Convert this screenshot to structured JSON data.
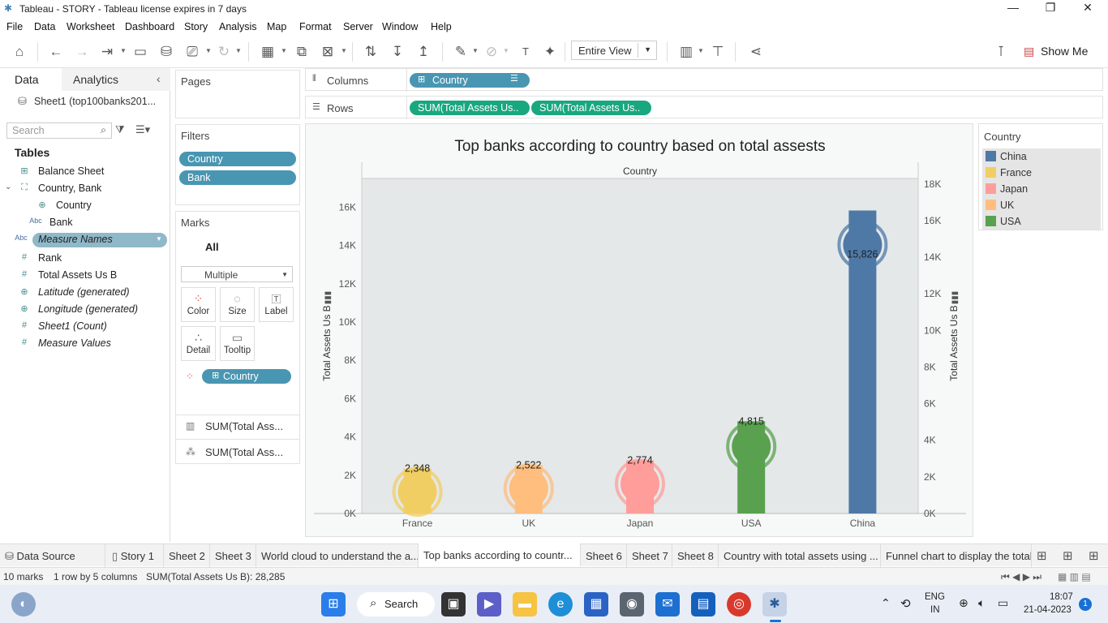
{
  "window": {
    "title": "Tableau - STORY - Tableau license expires in 7 days",
    "minimize": "—",
    "restore": "❐",
    "close": "✕"
  },
  "menu": [
    "File",
    "Data",
    "Worksheet",
    "Dashboard",
    "Story",
    "Analysis",
    "Map",
    "Format",
    "Server",
    "Window",
    "Help"
  ],
  "toolbar": {
    "fit_value": "Entire View",
    "show_me": "Show Me"
  },
  "data_pane": {
    "tab_data": "Data",
    "tab_analytics": "Analytics",
    "datasource": "Sheet1 (top100banks201...",
    "search_placeholder": "Search",
    "tables_header": "Tables",
    "fields": [
      {
        "icon": "#",
        "label": "Balance Sheet",
        "italic": false
      },
      {
        "icon": "⌄",
        "label": "Country, Bank",
        "italic": false
      },
      {
        "icon": "⊕",
        "label": "Country",
        "italic": false
      },
      {
        "icon": "Abc",
        "label": "Bank",
        "italic": false
      },
      {
        "icon": "Abc",
        "label": "Measure Names",
        "italic": true
      },
      {
        "icon": "#",
        "label": "Rank",
        "italic": false
      },
      {
        "icon": "#",
        "label": "Total Assets Us B",
        "italic": false
      },
      {
        "icon": "⊕",
        "label": "Latitude (generated)",
        "italic": true
      },
      {
        "icon": "⊕",
        "label": "Longitude (generated)",
        "italic": true
      },
      {
        "icon": "#",
        "label": "Sheet1 (Count)",
        "italic": true
      },
      {
        "icon": "#",
        "label": "Measure Values",
        "italic": true
      }
    ]
  },
  "pages": {
    "header": "Pages"
  },
  "filters": {
    "header": "Filters",
    "items": [
      "Country",
      "Bank"
    ]
  },
  "marks": {
    "header": "Marks",
    "all": "All",
    "type": "Multiple",
    "buttons": [
      "Color",
      "Size",
      "Label",
      "Detail",
      "Tooltip"
    ],
    "color_pill": "Country",
    "measure1": "SUM(Total Ass...",
    "measure2": "SUM(Total Ass..."
  },
  "shelves": {
    "columns_label": "Columns",
    "rows_label": "Rows",
    "columns_pill": "Country",
    "rows_pills": [
      "SUM(Total Assets Us..",
      "SUM(Total Assets Us.."
    ]
  },
  "legend": {
    "title": "Country",
    "items": [
      {
        "name": "China",
        "color": "#4e79a7"
      },
      {
        "name": "France",
        "color": "#f1ce63"
      },
      {
        "name": "Japan",
        "color": "#ff9d9a"
      },
      {
        "name": "UK",
        "color": "#ffbe7d"
      },
      {
        "name": "USA",
        "color": "#59a14f"
      }
    ]
  },
  "chart_data": {
    "type": "bar",
    "title": "Top banks according to country based on total assests",
    "header": "Country",
    "ylabel": "Total Assets Us B",
    "y2label": "Total Assets Us B",
    "categories": [
      "France",
      "UK",
      "Japan",
      "USA",
      "China"
    ],
    "values": [
      2348,
      2522,
      2774,
      4815,
      15826
    ],
    "labels": [
      "2,348",
      "2,522",
      "2,774",
      "4,815",
      "15,826"
    ],
    "colors": [
      "#f1ce63",
      "#ffbe7d",
      "#ff9d9a",
      "#59a14f",
      "#4e79a7"
    ],
    "left_axis": {
      "ylim": [
        0,
        17500
      ],
      "ticks": [
        0,
        2000,
        4000,
        6000,
        8000,
        10000,
        12000,
        14000,
        16000
      ],
      "tick_labels": [
        "0K",
        "2K",
        "4K",
        "6K",
        "8K",
        "10K",
        "12K",
        "14K",
        "16K"
      ]
    },
    "right_axis": {
      "ylim": [
        0,
        18300
      ],
      "ticks": [
        0,
        2000,
        4000,
        6000,
        8000,
        10000,
        12000,
        14000,
        16000,
        18000
      ],
      "tick_labels": [
        "0K",
        "2K",
        "4K",
        "6K",
        "8K",
        "10K",
        "12K",
        "14K",
        "16K",
        "18K"
      ]
    }
  },
  "tabs": {
    "datasource": "Data Source",
    "sheets": [
      "Story 1",
      "Sheet 2",
      "Sheet 3",
      "World cloud to understand the a...",
      "Top banks according to countr...",
      "Sheet 6",
      "Sheet 7",
      "Sheet 8",
      "Country with total assets using ...",
      "Funnel chart to display the total"
    ]
  },
  "status": {
    "marks": "10 marks",
    "dims": "1 row by 5 columns",
    "sum": "SUM(Total Assets Us B): 28,285"
  },
  "taskbar": {
    "search": "Search",
    "lang1": "ENG",
    "lang2": "IN",
    "time": "18:07",
    "date": "21-04-2023",
    "notif": "1"
  }
}
